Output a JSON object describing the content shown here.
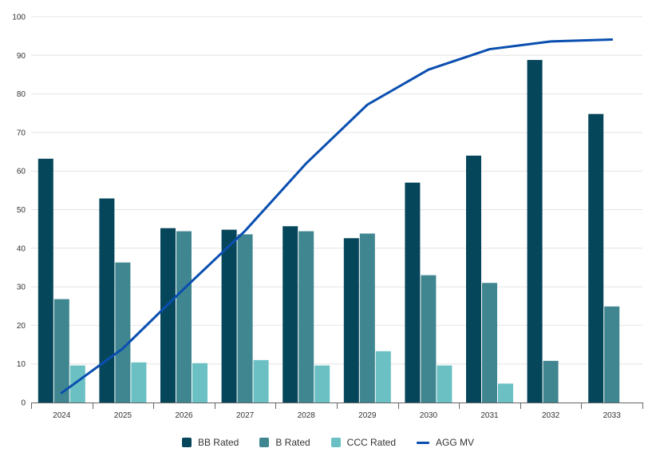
{
  "chart_data": {
    "type": "bar",
    "title": "",
    "xlabel": "",
    "ylabel": "",
    "ylim": [
      0,
      100
    ],
    "yticks": [
      0,
      10,
      20,
      30,
      40,
      50,
      60,
      70,
      80,
      90,
      100
    ],
    "grid": true,
    "legend_position": "bottom-center",
    "categories": [
      "2024",
      "2025",
      "2026",
      "2027",
      "2028",
      "2029",
      "2030",
      "2031",
      "2032",
      "2033"
    ],
    "series": [
      {
        "name": "BB Rated",
        "kind": "bar",
        "color": "#06465a",
        "values": [
          63.2,
          52.9,
          45.2,
          44.8,
          45.7,
          42.6,
          57.0,
          64.0,
          88.8,
          74.8
        ]
      },
      {
        "name": "B Rated",
        "kind": "bar",
        "color": "#3f8690",
        "values": [
          26.8,
          36.3,
          44.4,
          43.6,
          44.4,
          43.8,
          33.0,
          31.0,
          10.8,
          24.9
        ]
      },
      {
        "name": "CCC Rated",
        "kind": "bar",
        "color": "#6ac0c3",
        "values": [
          9.6,
          10.4,
          10.2,
          11.0,
          9.6,
          13.3,
          9.6,
          4.9,
          null,
          null
        ]
      },
      {
        "name": "AGG MV",
        "kind": "line",
        "color": "#0a4fb0",
        "values": [
          2.5,
          14.0,
          29.5,
          44.5,
          62.0,
          77.2,
          86.3,
          91.6,
          93.6,
          94.1
        ]
      }
    ]
  }
}
